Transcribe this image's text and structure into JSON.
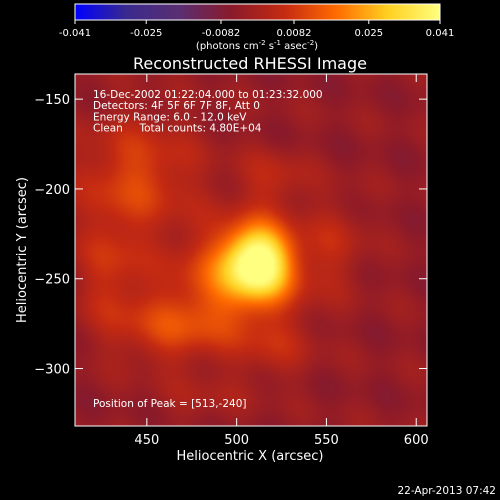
{
  "chart_data": {
    "type": "heatmap",
    "title": "Reconstructed RHESSI Image",
    "xlabel": "Heliocentric X (arcsec)",
    "ylabel": "Heliocentric Y (arcsec)",
    "xlim": [
      410,
      606
    ],
    "ylim": [
      -332,
      -136
    ],
    "xticks": [
      450,
      500,
      550,
      600
    ],
    "yticks": [
      -150,
      -200,
      -250,
      -300
    ],
    "info_lines": [
      "16-Dec-2002 01:22:04.000 to 01:23:32.000",
      "Detectors: 4F 5F 6F 7F 8F, Att 0",
      "Energy Range: 6.0 - 12.0 keV",
      "Clean     Total counts: 4.80E+04"
    ],
    "peak_label": "Position of Peak = [513,-240]",
    "peak": [
      513,
      -240
    ],
    "colorbar": {
      "ticks": [
        "-0.041",
        "-0.025",
        "-0.0082",
        "0.0082",
        "0.025",
        "0.041"
      ],
      "unit_main": "(photons cm",
      "unit_sup1": "-2",
      "unit_mid": " s",
      "unit_sup2": "-1",
      "unit_tail": " asec",
      "unit_sup3": "-2",
      "unit_close": ")",
      "range": [
        -0.041,
        0.041
      ],
      "colors": [
        "#0000ff",
        "#3a2a8c",
        "#5a2e72",
        "#8a1a2a",
        "#c42a12",
        "#ff6a00",
        "#ffd020",
        "#ffff80"
      ]
    },
    "sources": [
      {
        "x": 512,
        "y": -240,
        "sx": 13,
        "sy": 14,
        "amp": 0.041
      },
      {
        "x": 500,
        "y": -250,
        "sx": 26,
        "sy": 20,
        "amp": 0.018
      },
      {
        "x": 445,
        "y": -192,
        "sx": 24,
        "sy": 22,
        "amp": 0.014
      },
      {
        "x": 430,
        "y": -245,
        "sx": 14,
        "sy": 24,
        "amp": 0.01
      },
      {
        "x": 465,
        "y": -278,
        "sx": 22,
        "sy": 14,
        "amp": 0.013
      },
      {
        "x": 520,
        "y": -195,
        "sx": 14,
        "sy": 12,
        "amp": 0.008
      },
      {
        "x": 555,
        "y": -230,
        "sx": 12,
        "sy": 18,
        "amp": 0.007
      },
      {
        "x": 520,
        "y": -290,
        "sx": 16,
        "sy": 12,
        "amp": 0.007
      },
      {
        "x": 480,
        "y": -318,
        "sx": 18,
        "sy": 10,
        "amp": 0.004
      }
    ],
    "background_level": -0.004
  },
  "footer": {
    "timestamp": "22-Apr-2013 07:42"
  }
}
